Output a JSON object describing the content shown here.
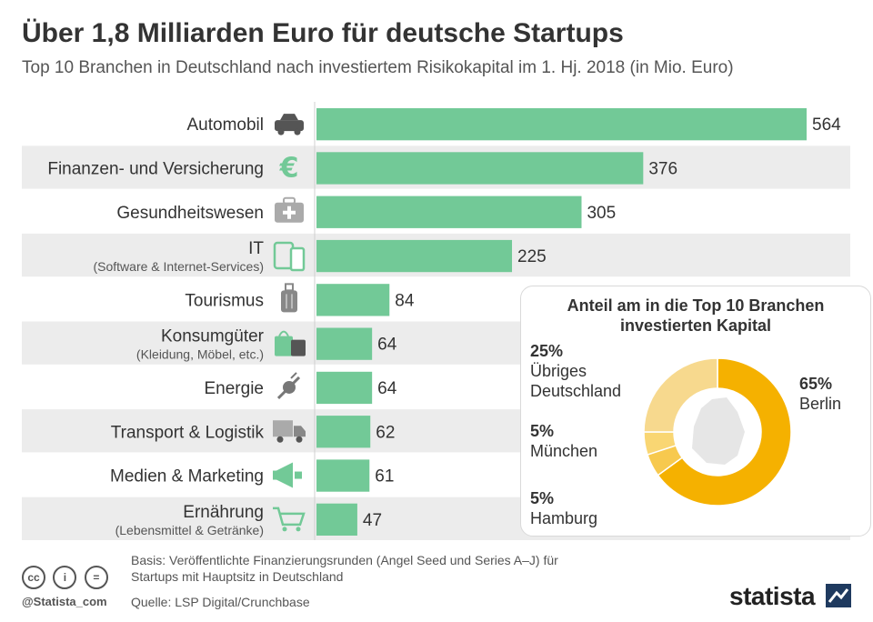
{
  "title": "Über 1,8 Milliarden Euro für deutsche Startups",
  "subtitle": "Top 10 Branchen in Deutschland nach investiertem Risikokapital im 1. Hj. 2018 (in Mio. Euro)",
  "colors": {
    "bar": "#72c997",
    "band": "#ececec",
    "icon": "#8a8a8a",
    "berlin": "#f5b100",
    "other": "#f7d98e"
  },
  "chart_data": [
    {
      "type": "bar",
      "orientation": "horizontal",
      "categories": [
        "Automobil",
        "Finanzen- und Versicherung",
        "Gesundheitswesen",
        "IT",
        "Tourismus",
        "Konsumgüter",
        "Energie",
        "Transport & Logistik",
        "Medien & Marketing",
        "Ernährung"
      ],
      "category_sublabels": [
        "",
        "",
        "",
        "(Software & Internet-Services)",
        "",
        "(Kleidung, Möbel, etc.)",
        "",
        "",
        "",
        "(Lebensmittel & Getränke)"
      ],
      "icons": [
        "car-icon",
        "euro-icon",
        "first-aid-kit-icon",
        "devices-icon",
        "suitcase-icon",
        "shopping-bag-icon",
        "power-plug-icon",
        "truck-icon",
        "megaphone-icon",
        "shopping-cart-icon"
      ],
      "values": [
        564,
        376,
        305,
        225,
        84,
        64,
        64,
        62,
        61,
        47
      ],
      "xlim": [
        0,
        564
      ]
    },
    {
      "type": "pie",
      "title_lines": [
        "Anteil am in die Top 10 Branchen",
        "investierten Kapital"
      ],
      "slices": [
        {
          "pct": "65%",
          "name_lines": [
            "Berlin"
          ],
          "value": 65
        },
        {
          "pct": "5%",
          "name_lines": [
            "Hamburg"
          ],
          "value": 5
        },
        {
          "pct": "5%",
          "name_lines": [
            "München"
          ],
          "value": 5
        },
        {
          "pct": "25%",
          "name_lines": [
            "Übriges",
            "Deutschland"
          ],
          "value": 25
        }
      ]
    }
  ],
  "footer": {
    "basis_line1": "Basis: Veröffentlichte Finanzierungsrunden (Angel Seed und Series A–J) für",
    "basis_line2": "Startups mit Hauptsitz in Deutschland",
    "source": "Quelle: LSP Digital/Crunchbase",
    "handle": "@Statista_com",
    "cc_icons": [
      "cc-icon",
      "by-icon",
      "nd-icon"
    ],
    "cc_symbols": [
      "cc",
      "i",
      "="
    ],
    "logo": "statista"
  }
}
